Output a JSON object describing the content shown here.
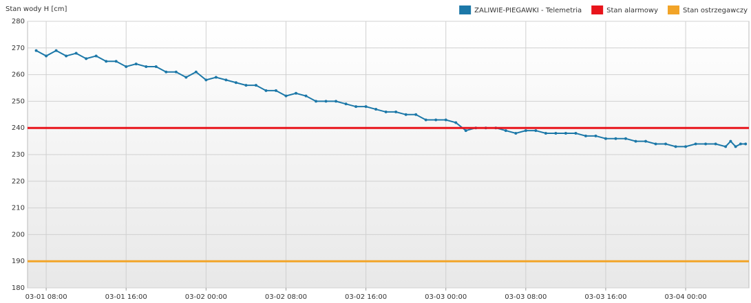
{
  "chart_data": {
    "type": "line",
    "y_axis_label": "Stan wody H [cm]",
    "ylim": [
      180,
      280
    ],
    "yticks": [
      180,
      190,
      200,
      210,
      220,
      230,
      240,
      250,
      260,
      270,
      280
    ],
    "xlim": [
      "03-01 06:08",
      "03-04 06:20"
    ],
    "xticks": [
      "03-01 08:00",
      "03-01 16:00",
      "03-02 00:00",
      "03-02 08:00",
      "03-02 16:00",
      "03-03 00:00",
      "03-03 08:00",
      "03-03 16:00",
      "03-04 00:00"
    ],
    "grid": true,
    "legend": "top-right",
    "x": [
      "03-01 07:00",
      "03-01 08:00",
      "03-01 09:00",
      "03-01 10:00",
      "03-01 11:00",
      "03-01 12:00",
      "03-01 13:00",
      "03-01 14:00",
      "03-01 15:00",
      "03-01 16:00",
      "03-01 17:00",
      "03-01 18:00",
      "03-01 19:00",
      "03-01 20:00",
      "03-01 21:00",
      "03-01 22:00",
      "03-01 23:00",
      "03-02 00:00",
      "03-02 01:00",
      "03-02 02:00",
      "03-02 03:00",
      "03-02 04:00",
      "03-02 05:00",
      "03-02 06:00",
      "03-02 07:00",
      "03-02 08:00",
      "03-02 09:00",
      "03-02 10:00",
      "03-02 11:00",
      "03-02 12:00",
      "03-02 13:00",
      "03-02 14:00",
      "03-02 15:00",
      "03-02 16:00",
      "03-02 17:00",
      "03-02 18:00",
      "03-02 19:00",
      "03-02 20:00",
      "03-02 21:00",
      "03-02 22:00",
      "03-02 23:00",
      "03-03 00:00",
      "03-03 01:00",
      "03-03 02:00",
      "03-03 03:00",
      "03-03 04:00",
      "03-03 05:00",
      "03-03 06:00",
      "03-03 07:00",
      "03-03 08:00",
      "03-03 09:00",
      "03-03 10:00",
      "03-03 11:00",
      "03-03 12:00",
      "03-03 13:00",
      "03-03 14:00",
      "03-03 15:00",
      "03-03 16:00",
      "03-03 17:00",
      "03-03 18:00",
      "03-03 19:00",
      "03-03 20:00",
      "03-03 21:00",
      "03-03 22:00",
      "03-03 23:00",
      "03-04 00:00",
      "03-04 01:00",
      "03-04 02:00",
      "03-04 03:00",
      "03-04 04:00",
      "03-04 04:30",
      "03-04 05:00",
      "03-04 05:30",
      "03-04 06:00"
    ],
    "series": [
      {
        "name": "ZALIWIE-PIEGAWKI - Telemetria",
        "color": "#1c78a8",
        "values": [
          269,
          267,
          269,
          267,
          268,
          266,
          267,
          265,
          265,
          263,
          264,
          263,
          263,
          261,
          261,
          259,
          261,
          258,
          259,
          258,
          257,
          256,
          256,
          254,
          254,
          252,
          253,
          252,
          250,
          250,
          250,
          249,
          248,
          248,
          247,
          246,
          246,
          245,
          245,
          243,
          243,
          243,
          242,
          239,
          240,
          240,
          240,
          239,
          238,
          239,
          239,
          238,
          238,
          238,
          238,
          237,
          237,
          236,
          236,
          236,
          235,
          235,
          234,
          234,
          233,
          233,
          234,
          234,
          234,
          233,
          235,
          233,
          234,
          234
        ]
      },
      {
        "name": "Stan alarmowy",
        "color": "#e8141b",
        "value": 240
      },
      {
        "name": "Stan ostrzegawczy",
        "color": "#f2a428",
        "value": 190
      }
    ]
  }
}
